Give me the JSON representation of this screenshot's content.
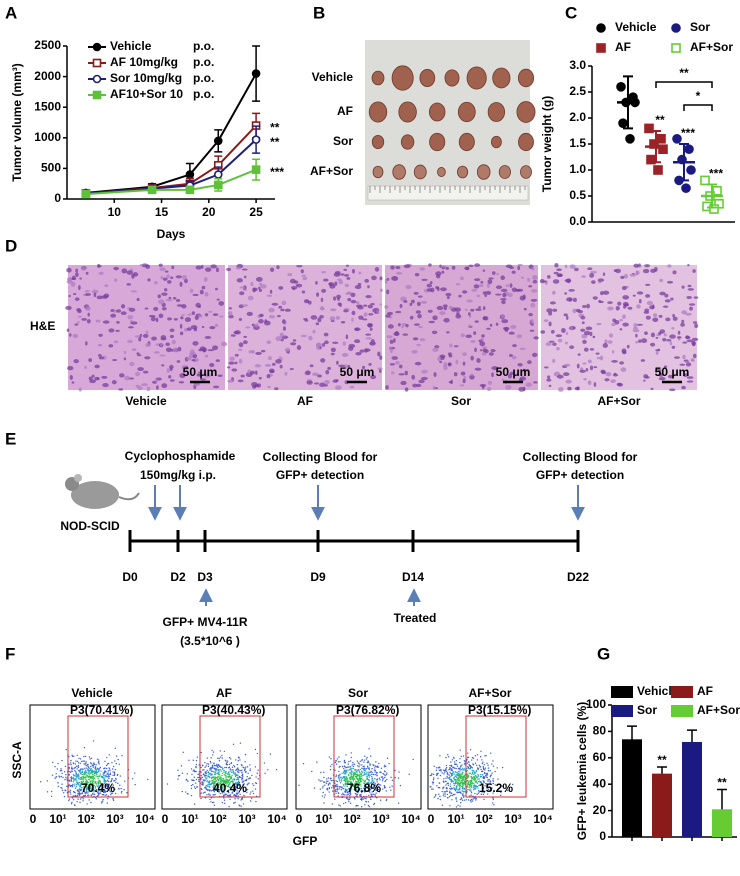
{
  "panel_labels": [
    "A",
    "B",
    "C",
    "D",
    "E",
    "F",
    "G"
  ],
  "chart_data": [
    {
      "type": "line",
      "xlabel": "Days",
      "ylabel": "Tumor volume (mm³)",
      "x": [
        7,
        14,
        18,
        21,
        25
      ],
      "xlim": [
        5,
        27
      ],
      "xticks": [
        10,
        15,
        20,
        25
      ],
      "ylim": [
        0,
        2500
      ],
      "yticks": [
        0,
        500,
        1000,
        1500,
        2000,
        2500
      ],
      "series": [
        {
          "name": "Vehicle",
          "route": "p.o.",
          "color": "#000000",
          "marker": "circle",
          "values": [
            100,
            200,
            400,
            950,
            2050
          ],
          "errors": [
            30,
            50,
            180,
            180,
            450
          ]
        },
        {
          "name": "AF 10mg/kg",
          "route": "p.o.",
          "color": "#8b1a1a",
          "marker": "open-square",
          "values": [
            90,
            180,
            250,
            550,
            1200
          ],
          "errors": [
            20,
            40,
            90,
            150,
            200
          ]
        },
        {
          "name": "Sor 10mg/kg",
          "route": "p.o.",
          "color": "#1f1f7a",
          "marker": "open-circle",
          "values": [
            90,
            170,
            220,
            400,
            970
          ],
          "errors": [
            20,
            40,
            70,
            120,
            220
          ]
        },
        {
          "name": "AF10+Sor 10",
          "route": "p.o.",
          "color": "#5fc13a",
          "marker": "square",
          "values": [
            80,
            150,
            150,
            230,
            480
          ],
          "errors": [
            20,
            30,
            50,
            100,
            170
          ]
        }
      ],
      "annotations": [
        "**",
        "**",
        "***"
      ]
    },
    {
      "type": "dot",
      "ylabel": "Tumor weight (g)",
      "ylim": [
        0,
        3
      ],
      "yticks": [
        {
          "value": 0,
          "label": "0.0"
        },
        {
          "value": 0.5,
          "label": "0.5"
        },
        {
          "value": 1,
          "label": "1.0"
        },
        {
          "value": 1.5,
          "label": "1.5"
        },
        {
          "value": 2,
          "label": "2.0"
        },
        {
          "value": 2.5,
          "label": "2.5"
        },
        {
          "value": 3,
          "label": "3.0"
        }
      ],
      "series": [
        {
          "name": "Vehicle",
          "color": "#000000",
          "marker": "circle",
          "values": [
            2.6,
            2.4,
            2.3,
            2.3,
            1.9,
            1.6
          ],
          "mean": 2.3,
          "sd": 0.5
        },
        {
          "name": "AF",
          "color": "#9b2226",
          "marker": "square",
          "values": [
            1.8,
            1.6,
            1.5,
            1.4,
            1.2,
            1.0
          ],
          "mean": 1.45,
          "sd": 0.3
        },
        {
          "name": "Sor",
          "color": "#1a1a80",
          "marker": "circle",
          "values": [
            1.6,
            1.4,
            1.2,
            1.0,
            0.8,
            0.65
          ],
          "mean": 1.15,
          "sd": 0.35
        },
        {
          "name": "AF+Sor",
          "color": "#66cc33",
          "marker": "open-square",
          "values": [
            0.8,
            0.6,
            0.5,
            0.35,
            0.3,
            0.25
          ],
          "mean": 0.5,
          "sd": 0.22
        }
      ],
      "annotations": [
        null,
        "**",
        "***",
        "***"
      ],
      "comparisons": [
        "**",
        "*"
      ]
    },
    {
      "type": "bar",
      "ylabel": "GFP+ leukemia cells (%)",
      "categories": [
        "Vehicle",
        "AF",
        "Sor",
        "AF+Sor"
      ],
      "colors": [
        "#000000",
        "#8b1a1a",
        "#1a1a80",
        "#66cc33"
      ],
      "values": [
        74,
        48,
        72,
        21
      ],
      "errors": [
        10,
        5,
        9,
        15
      ],
      "ylim": [
        0,
        100
      ],
      "yticks": [
        0,
        20,
        40,
        60,
        80,
        100
      ],
      "annotations": [
        null,
        "**",
        null,
        "**"
      ]
    }
  ],
  "tumor_photo": {
    "rows": [
      "Vehicle",
      "AF",
      "Sor",
      "AF+Sor"
    ]
  },
  "histology": {
    "stain": "H&E",
    "groups": [
      "Vehicle",
      "AF",
      "Sor",
      "AF+Sor"
    ],
    "scale_bar": "50 μm"
  },
  "timeline": {
    "strain": "NOD-SCID",
    "days": [
      "D0",
      "D2",
      "D3",
      "D9",
      "D14",
      "D22"
    ],
    "conditioning": [
      "Cyclophosphamide",
      "150mg/kg i.p."
    ],
    "blood_collection": [
      "Collecting Blood for",
      "GFP+ detection"
    ],
    "injection": [
      "GFP+ MV4-11R",
      "(3.5*10^6 )"
    ],
    "treatment": "Treated"
  },
  "flow": {
    "y_label": "SSC-A",
    "x_label": "GFP",
    "x_ticks": [
      "0",
      "10¹",
      "10²",
      "10³",
      "10⁴"
    ],
    "plots": [
      {
        "title": "Vehicle",
        "gate": "P3(70.41%)",
        "percent": "70.4%"
      },
      {
        "title": "AF",
        "gate": "P3(40.43%)",
        "percent": "40.4%"
      },
      {
        "title": "Sor",
        "gate": "P3(76.82%)",
        "percent": "76.8%"
      },
      {
        "title": "AF+Sor",
        "gate": "P3(15.15%)",
        "percent": "15.2%"
      }
    ]
  }
}
